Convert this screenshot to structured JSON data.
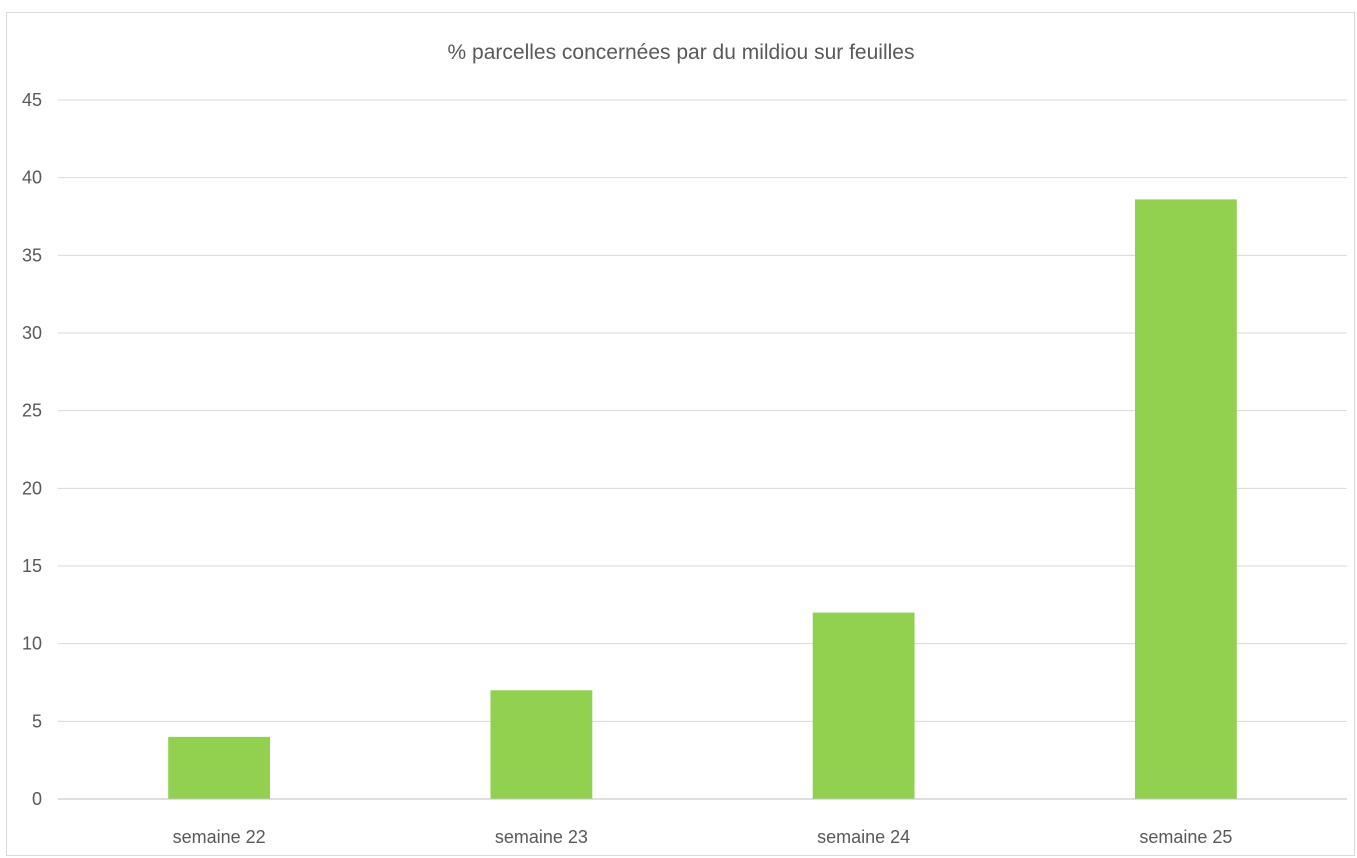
{
  "chart_data": {
    "type": "bar",
    "title": "% parcelles concernées par du mildiou sur feuilles",
    "xlabel": "",
    "ylabel": "",
    "categories": [
      "semaine 22",
      "semaine 23",
      "semaine 24",
      "semaine 25"
    ],
    "values": [
      4,
      7,
      12,
      38.6
    ],
    "ylim": [
      0,
      45
    ],
    "yticks": [
      0,
      5,
      10,
      15,
      20,
      25,
      30,
      35,
      40,
      45
    ],
    "grid": true,
    "legend": "none",
    "bar_color": "#92d050"
  },
  "colors": {
    "gridline": "#d9d9d9",
    "axis": "#bfbfbf",
    "text": "#595959"
  }
}
